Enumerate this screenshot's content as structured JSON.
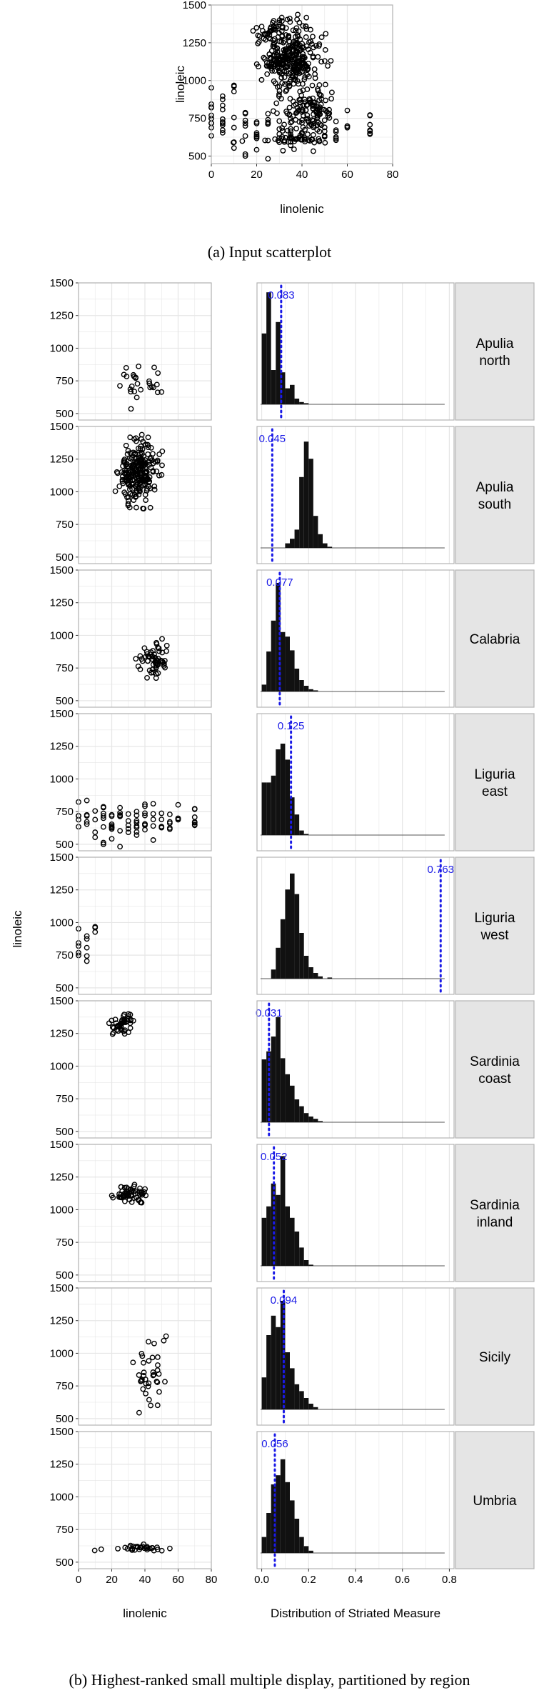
{
  "figure": {
    "caption_a": "(a) Input scatterplot",
    "caption_b": "(b) Highest-ranked small multiple display, partitioned by region"
  },
  "colors": {
    "panel_border": "#b3b3b3",
    "grid": "#e6e6e6",
    "strip_bg": "#e5e5e5",
    "bar": "#111111",
    "annotation": "#1a1ae6"
  },
  "chart_data": [
    {
      "type": "scatter",
      "xlabel": "linolenic",
      "ylabel": "linoleic",
      "xlim": [
        0,
        80
      ],
      "ylim": [
        450,
        1500
      ],
      "xticks": [
        0,
        20,
        40,
        60,
        80
      ],
      "yticks": [
        500,
        750,
        1000,
        1250,
        1500
      ],
      "marker": "open-circle",
      "grid": true,
      "description_points": "combined cloud of all regions shown below"
    },
    {
      "type": "scatter+histogram",
      "layout": "facet-rows",
      "scatter_xlabel": "linolenic",
      "scatter_ylabel": "linoleic",
      "scatter_xlim": [
        0,
        80
      ],
      "scatter_ylim": [
        450,
        1500
      ],
      "scatter_xticks": [
        0,
        20,
        40,
        60,
        80
      ],
      "scatter_yticks": [
        500,
        750,
        1000,
        1250,
        1500
      ],
      "hist_xlabel": "Distribution of Striated Measure",
      "hist_xlim": [
        -0.02,
        0.82
      ],
      "hist_xticks": [
        0.0,
        0.2,
        0.4,
        0.6,
        0.8
      ],
      "hist_xtick_labels": [
        "0.0",
        "0.2",
        "0.4",
        "0.6",
        "0.8"
      ],
      "hist_bin_width": 0.02,
      "panels": [
        {
          "region": [
            "Apulia",
            "north"
          ],
          "measure": 0.083,
          "measure_label": "0.083",
          "scatter": {
            "cx": 40,
            "cy": 710,
            "sx": 7,
            "sy": 75,
            "n": 28,
            "seed": 11
          },
          "hist": [
            0.62,
            0.98,
            0.3,
            0.72,
            0.28,
            0.14,
            0.17,
            0.05,
            0.02,
            0.01
          ]
        },
        {
          "region": [
            "Apulia",
            "south"
          ],
          "measure": 0.045,
          "measure_label": "0.045",
          "scatter": {
            "cx": 36,
            "cy": 1160,
            "sx": 5.5,
            "sy": 120,
            "n": 240,
            "seed": 23
          },
          "hist": [
            0,
            0,
            0,
            0,
            0,
            0.04,
            0.08,
            0.16,
            0.62,
            0.93,
            0.78,
            0.28,
            0.12,
            0.04,
            0.01
          ]
        },
        {
          "region": [
            "Calabria"
          ],
          "measure": 0.077,
          "measure_label": "0.077",
          "scatter": {
            "cx": 45,
            "cy": 810,
            "sx": 4,
            "sy": 70,
            "n": 60,
            "seed": 37
          },
          "hist": [
            0.06,
            0.35,
            0.62,
            0.95,
            0.52,
            0.48,
            0.36,
            0.2,
            0.1,
            0.05,
            0.02,
            0.01
          ]
        },
        {
          "region": [
            "Liguria",
            "east"
          ],
          "measure": 0.125,
          "measure_label": "0.125",
          "scatter": {
            "grid": true,
            "xs": [
              0,
              5,
              10,
              15,
              20,
              25,
              30,
              35,
              40,
              45,
              50,
              55,
              60,
              70
            ],
            "cy": 680,
            "sy": 70,
            "seed": 41
          },
          "hist": [
            0.46,
            0.46,
            0.52,
            0.75,
            0.8,
            0.66,
            0.33,
            0.18,
            0.04,
            0.01
          ]
        },
        {
          "region": [
            "Liguria",
            "west"
          ],
          "measure": 0.763,
          "measure_label": "0.763",
          "scatter": {
            "grid": true,
            "xs": [
              0,
              5,
              10
            ],
            "cy": 900,
            "sy": 90,
            "seed": 53
          },
          "hist": [
            0,
            0,
            0.08,
            0.27,
            0.52,
            0.78,
            0.92,
            0.74,
            0.4,
            0.2,
            0.1,
            0.05,
            0.02,
            0,
            0.01
          ]
        },
        {
          "region": [
            "Sardinia",
            "coast"
          ],
          "measure": 0.031,
          "measure_label": "0.031",
          "scatter": {
            "cx": 27,
            "cy": 1330,
            "sx": 3.5,
            "sy": 40,
            "n": 45,
            "seed": 67
          },
          "hist": [
            0.55,
            0.62,
            0.75,
            0.92,
            0.56,
            0.42,
            0.32,
            0.2,
            0.14,
            0.08,
            0.05,
            0.03,
            0.01
          ]
        },
        {
          "region": [
            "Sardinia",
            "inland"
          ],
          "measure": 0.052,
          "measure_label": "0.052",
          "scatter": {
            "cx": 32,
            "cy": 1120,
            "sx": 5,
            "sy": 35,
            "n": 60,
            "seed": 79
          },
          "hist": [
            0.42,
            0.52,
            0.72,
            0.62,
            0.96,
            0.52,
            0.42,
            0.3,
            0.16,
            0.05,
            0.01
          ]
        },
        {
          "region": [
            "Sicily"
          ],
          "measure": 0.094,
          "measure_label": "0.094",
          "scatter": {
            "cx": 43,
            "cy": 860,
            "sx": 4.5,
            "sy": 150,
            "n": 38,
            "seed": 83
          },
          "hist": [
            0.28,
            0.65,
            0.82,
            0.72,
            0.95,
            0.5,
            0.36,
            0.22,
            0.16,
            0.1,
            0.05,
            0.02
          ]
        },
        {
          "region": [
            "Umbria"
          ],
          "measure": 0.056,
          "measure_label": "0.056",
          "scatter": {
            "cx": 36,
            "cy": 605,
            "sx": 8,
            "sy": 12,
            "n": 34,
            "seed": 97
          },
          "hist": [
            0.14,
            0.35,
            0.6,
            0.68,
            0.82,
            0.62,
            0.46,
            0.3,
            0.14,
            0.06,
            0.02
          ]
        }
      ]
    }
  ]
}
